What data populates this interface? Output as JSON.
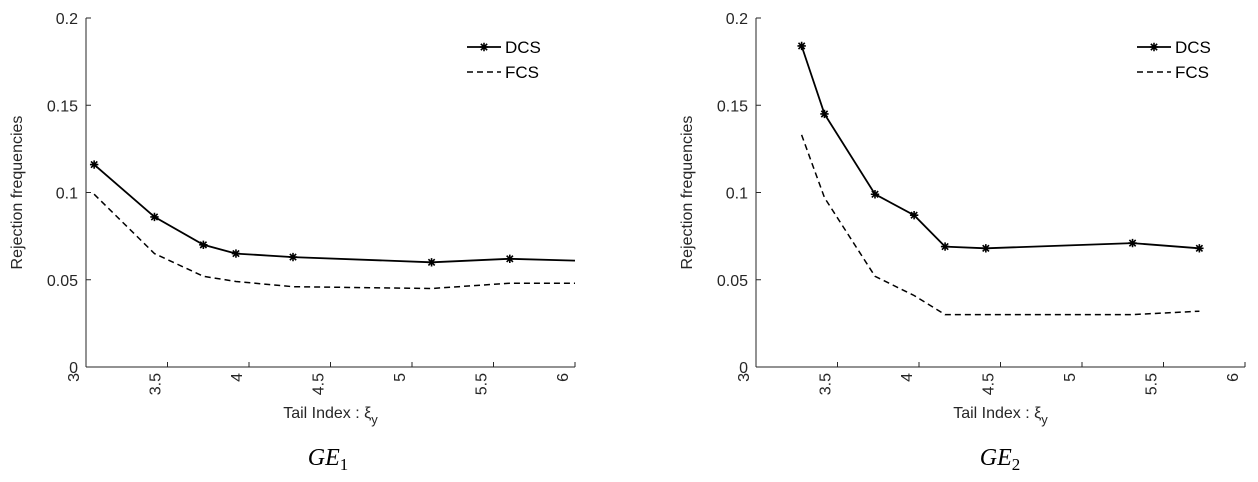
{
  "chart_data": [
    {
      "type": "line",
      "caption": "GE",
      "caption_subscript": "1",
      "xlabel": "Tail Index : ξ",
      "xlabel_subscript": "y",
      "ylabel": "Rejection frequencies",
      "xlim": [
        3,
        6
      ],
      "ylim": [
        0,
        0.2
      ],
      "xticks": [
        "3",
        "3.5",
        "4",
        "4.5",
        "5",
        "5.5",
        "6"
      ],
      "yticks": [
        "0",
        "0.05",
        "0.1",
        "0.15",
        "0.2"
      ],
      "legend_position": "top-right",
      "series": [
        {
          "name": "DCS",
          "style": "solid-star",
          "x": [
            3.05,
            3.42,
            3.72,
            3.92,
            4.27,
            5.12,
            5.6,
            6.0
          ],
          "y": [
            0.116,
            0.086,
            0.07,
            0.065,
            0.063,
            0.06,
            0.062,
            0.061
          ],
          "markers": [
            true,
            true,
            true,
            true,
            true,
            true,
            true,
            false
          ]
        },
        {
          "name": "FCS",
          "style": "dashed",
          "x": [
            3.05,
            3.42,
            3.72,
            3.92,
            4.27,
            5.12,
            5.6,
            6.0
          ],
          "y": [
            0.099,
            0.065,
            0.052,
            0.049,
            0.046,
            0.045,
            0.048,
            0.048
          ]
        }
      ]
    },
    {
      "type": "line",
      "caption": "GE",
      "caption_subscript": "2",
      "xlabel": "Tail Index : ξ",
      "xlabel_subscript": "y",
      "ylabel": "Rejection frequencies",
      "xlim": [
        3,
        6
      ],
      "ylim": [
        0,
        0.2
      ],
      "xticks": [
        "3",
        "3.5",
        "4",
        "4.5",
        "5",
        "5.5",
        "6"
      ],
      "yticks": [
        "0",
        "0.05",
        "0.1",
        "0.15",
        "0.2"
      ],
      "legend_position": "top-right",
      "series": [
        {
          "name": "DCS",
          "style": "solid-star",
          "x": [
            3.28,
            3.42,
            3.73,
            3.97,
            4.16,
            4.41,
            5.31,
            5.72
          ],
          "y": [
            0.184,
            0.145,
            0.099,
            0.087,
            0.069,
            0.068,
            0.071,
            0.068
          ],
          "markers": [
            true,
            true,
            true,
            true,
            true,
            true,
            true,
            true
          ]
        },
        {
          "name": "FCS",
          "style": "dashed",
          "x": [
            3.28,
            3.42,
            3.73,
            3.97,
            4.16,
            4.41,
            5.31,
            5.72
          ],
          "y": [
            0.133,
            0.097,
            0.052,
            0.041,
            0.03,
            0.03,
            0.03,
            0.032
          ]
        }
      ]
    }
  ]
}
